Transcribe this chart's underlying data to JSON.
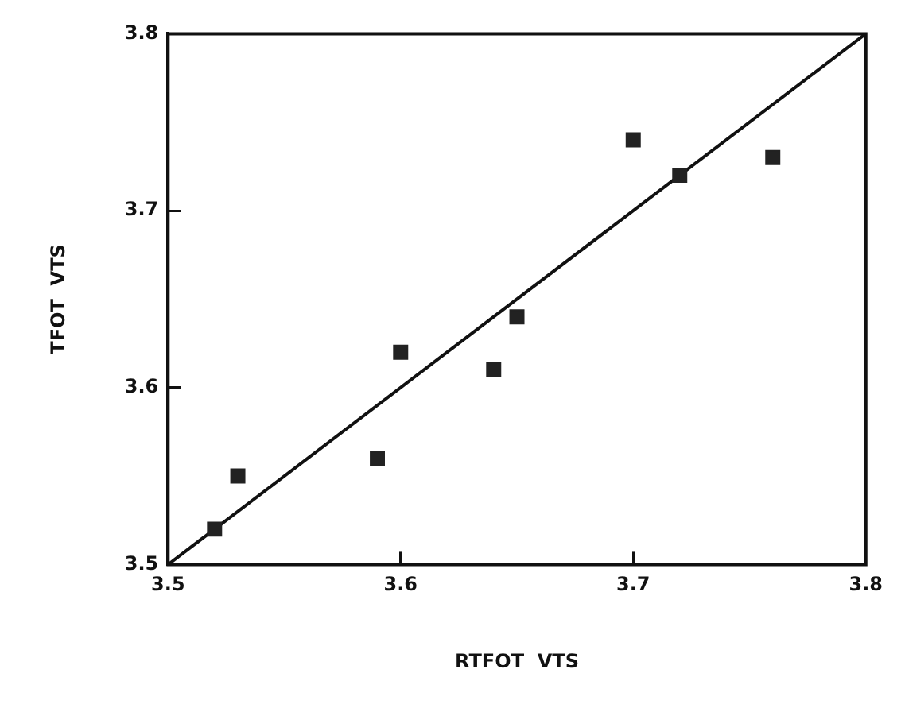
{
  "chart_data": {
    "type": "scatter",
    "xlabel": "RTFOT  VTS",
    "ylabel": "TFOT  VTS",
    "xlim": [
      3.5,
      3.8
    ],
    "ylim": [
      3.5,
      3.8
    ],
    "xticks": [
      {
        "value": 3.5,
        "label": "3.5"
      },
      {
        "value": 3.6,
        "label": "3.6"
      },
      {
        "value": 3.7,
        "label": "3.7"
      },
      {
        "value": 3.8,
        "label": "3.8"
      }
    ],
    "yticks": [
      {
        "value": 3.5,
        "label": "3.5"
      },
      {
        "value": 3.6,
        "label": "3.6"
      },
      {
        "value": 3.7,
        "label": "3.7"
      },
      {
        "value": 3.8,
        "label": "3.8"
      }
    ],
    "grid": false,
    "legend": false,
    "marker": "square",
    "series": [
      {
        "type": "scatter",
        "color": "#222222",
        "x": [
          3.52,
          3.53,
          3.59,
          3.6,
          3.64,
          3.65,
          3.7,
          3.72,
          3.76
        ],
        "values": [
          3.52,
          3.55,
          3.56,
          3.62,
          3.61,
          3.64,
          3.74,
          3.72,
          3.73
        ]
      },
      {
        "type": "line",
        "color": "#111111",
        "marker": "none",
        "x": [
          3.5,
          3.8
        ],
        "values": [
          3.5,
          3.8
        ]
      }
    ]
  }
}
